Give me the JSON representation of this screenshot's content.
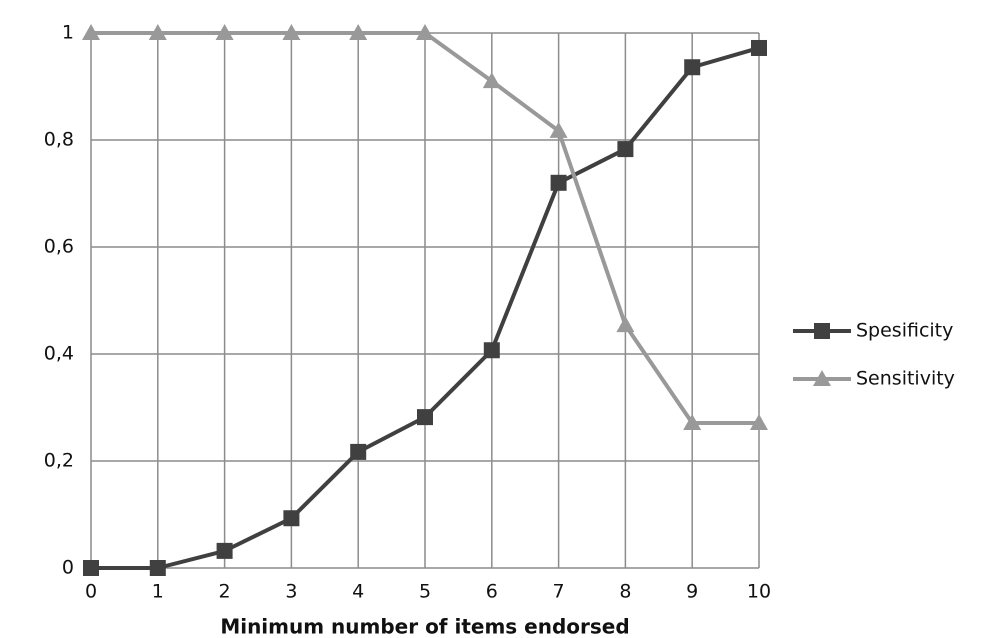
{
  "chart_data": {
    "type": "line",
    "x_label": "Minimum number of items endorsed",
    "x": [
      0,
      1,
      2,
      3,
      4,
      5,
      6,
      7,
      8,
      9,
      10
    ],
    "xlim": [
      0,
      10
    ],
    "xticks": [
      0,
      1,
      2,
      3,
      4,
      5,
      6,
      7,
      8,
      9,
      10
    ],
    "ylim": [
      0,
      1
    ],
    "yticks": [
      0,
      {
        "value": 0.2,
        "label": "0,2"
      },
      {
        "value": 0.4,
        "label": "0,4"
      },
      {
        "value": 0.6,
        "label": "0,6"
      },
      {
        "value": 0.8,
        "label": "0,8"
      },
      1
    ],
    "grid": true,
    "legend": "right",
    "series": [
      {
        "name": "Spesificity",
        "color": "#404040",
        "marker": "square",
        "values": [
          0,
          0,
          0.032,
          0.093,
          0.217,
          0.282,
          0.407,
          0.72,
          0.783,
          0.936,
          0.972
        ]
      },
      {
        "name": "Sensitivity",
        "color": "#999999",
        "marker": "triangle",
        "values": [
          1,
          1,
          1,
          1,
          1,
          1,
          0.91,
          0.817,
          0.454,
          0.271,
          0.271
        ]
      }
    ]
  }
}
